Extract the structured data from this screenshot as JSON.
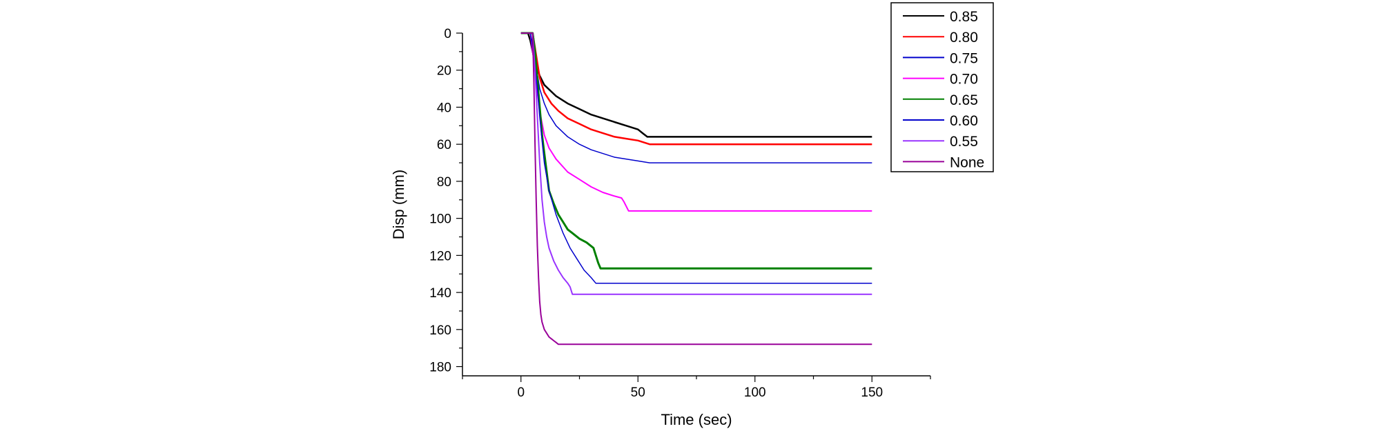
{
  "chart_data": {
    "type": "line",
    "title": "",
    "xlabel": "Time (sec)",
    "ylabel": "Disp (mm)",
    "xlim": [
      -25,
      175
    ],
    "ylim": [
      0,
      185
    ],
    "y_inverted": true,
    "x_ticks": [
      0,
      50,
      100,
      150
    ],
    "y_ticks": [
      0,
      20,
      40,
      60,
      80,
      100,
      120,
      140,
      160,
      180
    ],
    "grid": false,
    "legend_position": "top-right-outside",
    "series": [
      {
        "name": "0.85",
        "color": "#000000",
        "width": 2.5,
        "x": [
          0,
          3,
          4,
          5,
          6,
          8,
          10,
          15,
          20,
          25,
          30,
          35,
          40,
          45,
          50,
          52,
          54,
          150
        ],
        "y": [
          0,
          0,
          4,
          10,
          16,
          23,
          28,
          34,
          38,
          41,
          44,
          46,
          48,
          50,
          52,
          54,
          56,
          56
        ]
      },
      {
        "name": "0.80",
        "color": "#ff0000",
        "width": 2.5,
        "x": [
          0,
          5,
          6,
          7,
          8,
          10,
          13,
          16,
          20,
          25,
          30,
          35,
          40,
          45,
          50,
          55,
          150
        ],
        "y": [
          0,
          0,
          8,
          16,
          24,
          32,
          38,
          42,
          46,
          49,
          52,
          54,
          56,
          57,
          58,
          60,
          60
        ]
      },
      {
        "name": "0.75",
        "color": "#0000cc",
        "width": 1.5,
        "x": [
          0,
          4,
          5,
          6,
          7,
          8,
          10,
          12,
          15,
          20,
          25,
          30,
          40,
          50,
          55,
          150
        ],
        "y": [
          0,
          0,
          6,
          14,
          22,
          30,
          38,
          44,
          50,
          56,
          60,
          63,
          67,
          69,
          70,
          70
        ]
      },
      {
        "name": "0.70",
        "color": "#ff00ff",
        "width": 2,
        "x": [
          0,
          4,
          5,
          6,
          7,
          8,
          10,
          12,
          15,
          20,
          25,
          30,
          35,
          40,
          43,
          44,
          46,
          150
        ],
        "y": [
          0,
          0,
          10,
          20,
          32,
          42,
          55,
          62,
          68,
          75,
          79,
          83,
          86,
          88,
          89,
          91,
          96,
          96
        ]
      },
      {
        "name": "0.65",
        "color": "#008000",
        "width": 3,
        "x": [
          0,
          5,
          6,
          7,
          8,
          9,
          10,
          11,
          12,
          14,
          16,
          18,
          20,
          22,
          25,
          28,
          31,
          33,
          34,
          150
        ],
        "y": [
          0,
          0,
          10,
          25,
          40,
          55,
          65,
          75,
          85,
          92,
          98,
          102,
          106,
          108,
          111,
          113,
          116,
          124,
          127,
          127
        ]
      },
      {
        "name": "0.60",
        "color": "#0000cc",
        "width": 1.5,
        "x": [
          0,
          4,
          5,
          6,
          7,
          8,
          9,
          10,
          12,
          15,
          18,
          21,
          24,
          27,
          30,
          32,
          150
        ],
        "y": [
          0,
          0,
          8,
          18,
          30,
          45,
          58,
          70,
          85,
          98,
          108,
          116,
          122,
          128,
          132,
          135,
          135
        ]
      },
      {
        "name": "0.55",
        "color": "#9933ff",
        "width": 2,
        "x": [
          0,
          5,
          6,
          7,
          8,
          9,
          10,
          11,
          12,
          14,
          16,
          18,
          20,
          21,
          22,
          150
        ],
        "y": [
          0,
          0,
          20,
          45,
          70,
          90,
          102,
          110,
          116,
          123,
          128,
          132,
          135,
          137,
          141,
          141
        ]
      },
      {
        "name": "None",
        "color": "#990099",
        "width": 2,
        "x": [
          0,
          5,
          5.5,
          6,
          6.5,
          7,
          7.5,
          8,
          8.5,
          9,
          10,
          11,
          12,
          13,
          14,
          15,
          16,
          17,
          20,
          30,
          60,
          90,
          120,
          150
        ],
        "y": [
          0,
          0,
          25,
          60,
          90,
          115,
          132,
          145,
          152,
          156,
          160,
          162,
          164,
          165,
          166,
          167,
          168,
          168,
          168,
          168,
          168,
          168,
          168,
          168
        ]
      }
    ]
  }
}
